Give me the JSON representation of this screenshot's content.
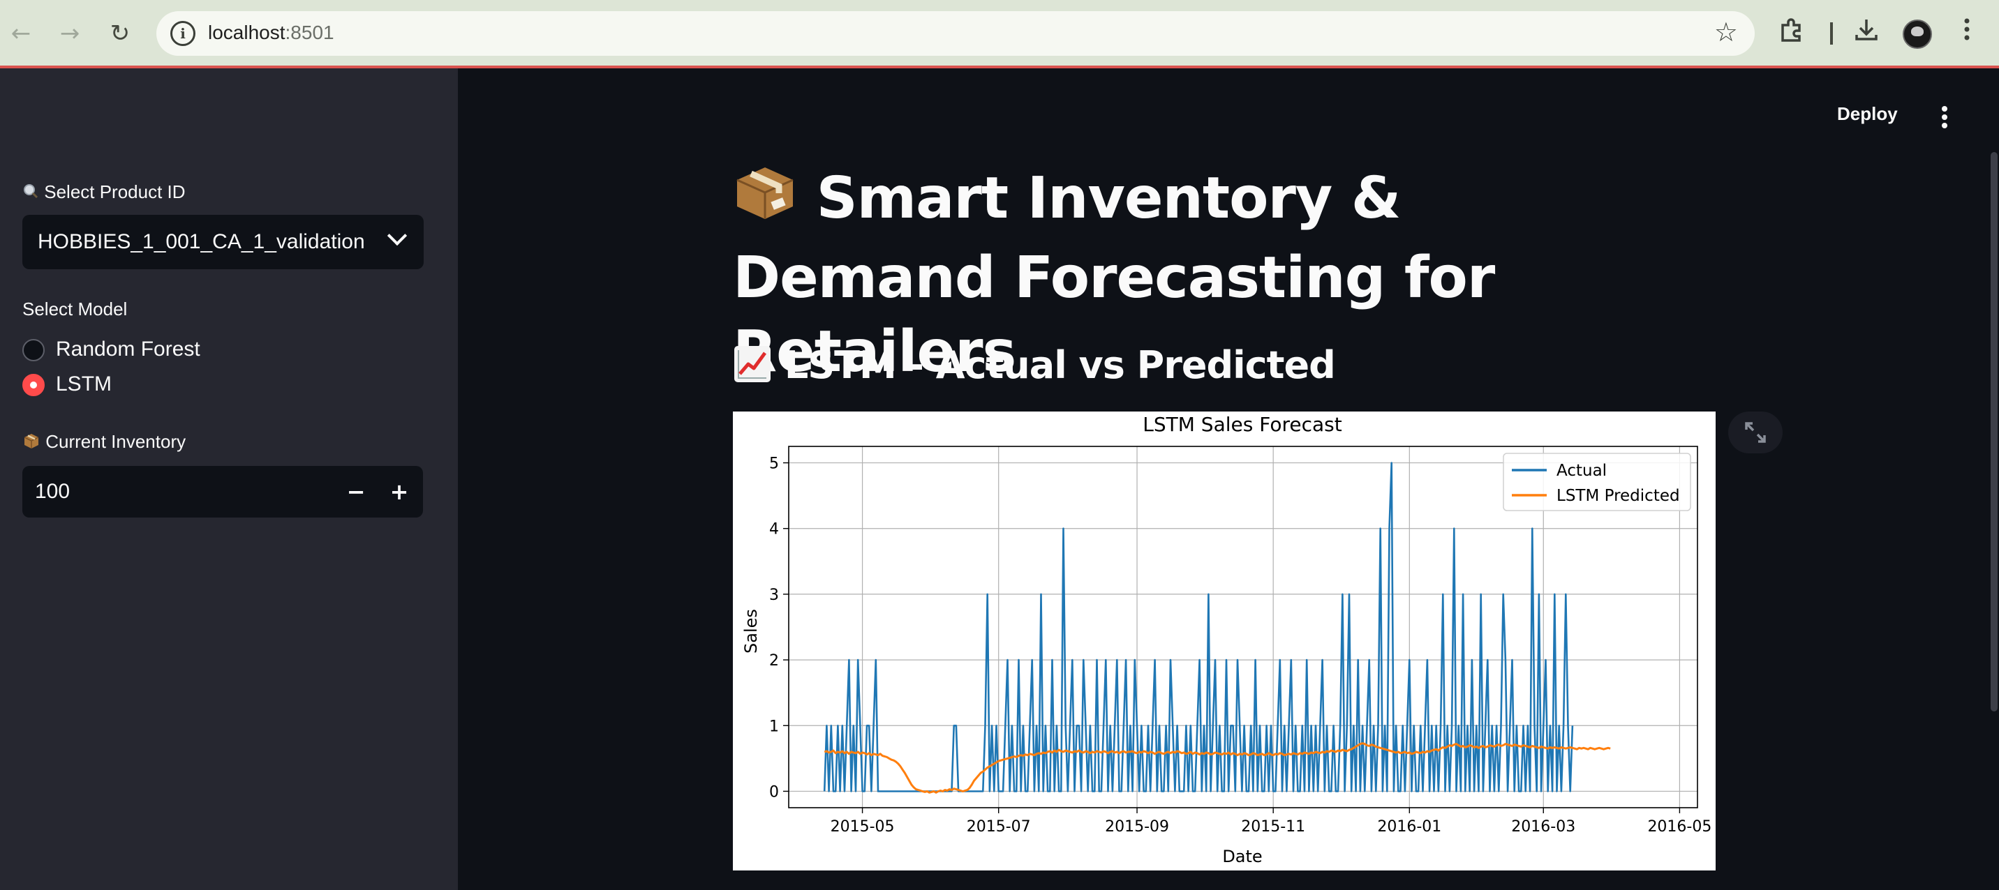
{
  "browser": {
    "url_host": "localhost",
    "url_port": ":8501"
  },
  "sidebar": {
    "product_label": "Select Product ID",
    "product_label_icon": "magnifier-icon",
    "product_value": "HOBBIES_1_001_CA_1_validation",
    "model_label": "Select Model",
    "model_options": [
      {
        "label": "Random Forest",
        "selected": false
      },
      {
        "label": "LSTM",
        "selected": true
      }
    ],
    "inventory_label": "Current Inventory",
    "inventory_label_icon": "package-icon",
    "inventory_value": "100",
    "decrement_label": "−",
    "increment_label": "+"
  },
  "header": {
    "deploy_label": "Deploy"
  },
  "main": {
    "title": "Smart Inventory & Demand Forecasting for Retailers",
    "title_icon": "package-icon",
    "section_header": "LSTM - Actual vs Predicted",
    "section_icon": "chart-increasing-icon"
  },
  "colors": {
    "background": "#0e1117",
    "sidebar": "#262730",
    "accent": "#ff4b4b",
    "actual_series": "#1f77b4",
    "predicted_series": "#ff7f0e"
  },
  "chart_data": {
    "type": "line",
    "title": "LSTM Sales Forecast",
    "xlabel": "Date",
    "ylabel": "Sales",
    "xlim": [
      "2015-03-29",
      "2016-05-09"
    ],
    "ylim": [
      -0.25,
      5.25
    ],
    "x_ticks": [
      "2015-05",
      "2015-07",
      "2015-09",
      "2015-11",
      "2016-01",
      "2016-03",
      "2016-05"
    ],
    "y_ticks": [
      0,
      1,
      2,
      3,
      4,
      5
    ],
    "grid": true,
    "legend": "upper right",
    "start_date": "2015-04-14",
    "series": [
      {
        "name": "Actual",
        "color": "#1f77b4",
        "values": [
          0,
          1,
          0,
          1,
          0,
          0,
          1,
          0,
          1,
          0,
          1,
          2,
          0,
          1,
          0,
          2,
          1,
          0,
          0,
          1,
          1,
          0,
          1,
          2,
          0,
          0,
          0,
          0,
          0,
          0,
          0,
          0,
          0,
          0,
          0,
          0,
          0,
          0,
          0,
          0,
          0,
          0,
          0,
          0,
          0,
          0,
          0,
          0,
          0,
          0,
          0,
          0,
          0,
          0,
          0,
          0,
          0,
          0,
          1,
          1,
          0,
          0,
          0,
          0,
          0,
          0,
          0,
          0,
          0,
          0,
          0,
          0,
          1,
          3,
          0,
          1,
          0,
          1,
          0,
          0,
          0,
          1,
          2,
          0,
          1,
          0,
          0,
          2,
          0,
          1,
          0,
          0,
          1,
          2,
          0,
          1,
          0,
          3,
          0,
          1,
          0,
          0,
          2,
          0,
          1,
          0,
          0,
          4,
          1,
          0,
          1,
          2,
          0,
          1,
          1,
          0,
          2,
          1,
          0,
          1,
          0,
          0,
          2,
          0,
          0,
          1,
          2,
          0,
          1,
          0,
          1,
          2,
          0,
          0,
          1,
          2,
          0,
          1,
          0,
          2,
          1,
          0,
          1,
          0,
          0,
          1,
          0,
          1,
          2,
          0,
          1,
          0,
          0,
          1,
          0,
          2,
          1,
          0,
          1,
          0,
          0,
          0,
          1,
          0,
          1,
          0,
          0,
          1,
          2,
          0,
          1,
          0,
          3,
          0,
          1,
          2,
          0,
          1,
          0,
          0,
          2,
          0,
          1,
          1,
          0,
          2,
          1,
          0,
          1,
          0,
          0,
          1,
          0,
          2,
          0,
          1,
          0,
          0,
          1,
          0,
          1,
          0,
          0,
          1,
          2,
          0,
          1,
          0,
          1,
          2,
          0,
          1,
          0,
          0,
          1,
          0,
          2,
          0,
          1,
          0,
          1,
          0,
          1,
          2,
          0,
          1,
          0,
          0,
          1,
          0,
          0,
          1,
          3,
          0,
          1,
          3,
          0,
          1,
          0,
          2,
          0,
          1,
          0,
          1,
          2,
          0,
          1,
          0,
          1,
          4,
          0,
          1,
          0,
          4,
          5,
          0,
          1,
          0,
          0,
          1,
          0,
          1,
          2,
          0,
          1,
          0,
          0,
          1,
          0,
          1,
          2,
          0,
          1,
          0,
          1,
          0,
          1,
          3,
          0,
          1,
          0,
          1,
          4,
          0,
          1,
          0,
          3,
          0,
          1,
          0,
          2,
          0,
          1,
          0,
          3,
          0,
          1,
          2,
          0,
          1,
          0,
          1,
          0,
          1,
          3,
          2,
          0,
          1,
          2,
          0,
          1,
          0,
          0,
          1,
          0,
          1,
          0,
          4,
          1,
          0,
          3,
          0,
          1,
          2,
          0,
          1,
          0,
          3,
          0,
          1,
          0,
          1,
          3,
          1,
          0,
          1
        ]
      },
      {
        "name": "LSTM Predicted",
        "color": "#ff7f0e",
        "values": [
          0.6,
          0.61,
          0.59,
          0.6,
          0.62,
          0.58,
          0.6,
          0.59,
          0.61,
          0.58,
          0.6,
          0.57,
          0.6,
          0.59,
          0.58,
          0.6,
          0.57,
          0.59,
          0.58,
          0.56,
          0.58,
          0.55,
          0.57,
          0.56,
          0.55,
          0.57,
          0.54,
          0.53,
          0.52,
          0.5,
          0.48,
          0.47,
          0.45,
          0.42,
          0.38,
          0.33,
          0.28,
          0.22,
          0.16,
          0.1,
          0.06,
          0.03,
          0.02,
          0.01,
          0.0,
          -0.01,
          0.0,
          -0.02,
          -0.01,
          0.0,
          -0.02,
          0.0,
          0.01,
          0.0,
          0.02,
          0.01,
          0.03,
          0.02,
          0.04,
          0.03,
          0.02,
          0.01,
          0.0,
          0.01,
          0.02,
          0.05,
          0.1,
          0.16,
          0.2,
          0.24,
          0.28,
          0.3,
          0.33,
          0.36,
          0.38,
          0.4,
          0.42,
          0.44,
          0.46,
          0.47,
          0.48,
          0.49,
          0.5,
          0.51,
          0.52,
          0.53,
          0.52,
          0.54,
          0.55,
          0.54,
          0.56,
          0.55,
          0.57,
          0.56,
          0.55,
          0.57,
          0.58,
          0.57,
          0.59,
          0.58,
          0.6,
          0.61,
          0.59,
          0.62,
          0.6,
          0.63,
          0.61,
          0.6,
          0.62,
          0.61,
          0.6,
          0.59,
          0.61,
          0.6,
          0.62,
          0.6,
          0.59,
          0.61,
          0.6,
          0.58,
          0.6,
          0.59,
          0.61,
          0.6,
          0.59,
          0.61,
          0.6,
          0.58,
          0.6,
          0.61,
          0.59,
          0.6,
          0.58,
          0.6,
          0.61,
          0.59,
          0.6,
          0.6,
          0.61,
          0.59,
          0.58,
          0.6,
          0.59,
          0.61,
          0.6,
          0.58,
          0.6,
          0.59,
          0.57,
          0.59,
          0.6,
          0.58,
          0.57,
          0.59,
          0.6,
          0.58,
          0.6,
          0.59,
          0.61,
          0.6,
          0.58,
          0.59,
          0.57,
          0.58,
          0.6,
          0.57,
          0.59,
          0.58,
          0.56,
          0.58,
          0.57,
          0.59,
          0.58,
          0.56,
          0.57,
          0.59,
          0.58,
          0.57,
          0.56,
          0.58,
          0.57,
          0.59,
          0.56,
          0.58,
          0.57,
          0.55,
          0.57,
          0.56,
          0.58,
          0.57,
          0.55,
          0.56,
          0.58,
          0.57,
          0.55,
          0.56,
          0.57,
          0.55,
          0.56,
          0.58,
          0.56,
          0.55,
          0.57,
          0.56,
          0.58,
          0.57,
          0.55,
          0.56,
          0.57,
          0.56,
          0.58,
          0.57,
          0.56,
          0.58,
          0.57,
          0.59,
          0.58,
          0.57,
          0.59,
          0.58,
          0.6,
          0.59,
          0.58,
          0.6,
          0.59,
          0.61,
          0.6,
          0.62,
          0.61,
          0.6,
          0.62,
          0.61,
          0.63,
          0.62,
          0.61,
          0.63,
          0.64,
          0.66,
          0.68,
          0.7,
          0.72,
          0.73,
          0.72,
          0.7,
          0.69,
          0.71,
          0.7,
          0.68,
          0.67,
          0.66,
          0.65,
          0.64,
          0.63,
          0.62,
          0.61,
          0.6,
          0.59,
          0.6,
          0.58,
          0.59,
          0.6,
          0.58,
          0.59,
          0.57,
          0.58,
          0.6,
          0.59,
          0.58,
          0.6,
          0.59,
          0.61,
          0.6,
          0.62,
          0.63,
          0.64,
          0.62,
          0.65,
          0.67,
          0.66,
          0.68,
          0.7,
          0.69,
          0.71,
          0.72,
          0.7,
          0.68,
          0.69,
          0.67,
          0.68,
          0.7,
          0.69,
          0.67,
          0.68,
          0.66,
          0.68,
          0.69,
          0.67,
          0.68,
          0.7,
          0.69,
          0.68,
          0.7,
          0.71,
          0.69,
          0.7,
          0.72,
          0.71,
          0.7,
          0.69,
          0.71,
          0.7,
          0.69,
          0.68,
          0.7,
          0.69,
          0.68,
          0.67,
          0.69,
          0.68,
          0.67,
          0.66,
          0.68,
          0.67,
          0.66,
          0.65,
          0.67,
          0.66,
          0.67,
          0.66,
          0.65,
          0.67,
          0.66,
          0.65,
          0.66,
          0.67,
          0.66,
          0.65,
          0.64,
          0.66,
          0.65,
          0.66,
          0.65,
          0.64,
          0.66,
          0.65,
          0.64,
          0.65,
          0.66,
          0.65,
          0.64,
          0.65,
          0.66,
          0.65
        ]
      }
    ]
  }
}
